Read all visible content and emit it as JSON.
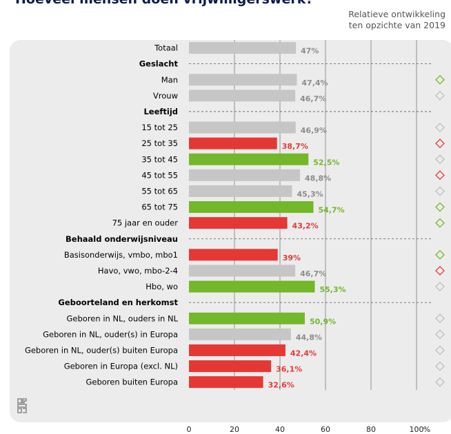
{
  "header": {
    "title": "Hoeveel mensen doen vrijwilligerswerk?",
    "subtitle": "Relatieve ontwikkeling\nten opzichte van 2019"
  },
  "colors": {
    "neutral": "#c6c6c6",
    "lower": "#e53834",
    "higher": "#74b72a",
    "neutral_text": "#8c8c8c",
    "panel": "#ececec"
  },
  "chart_data": {
    "type": "bar",
    "orientation": "horizontal",
    "title": "Hoeveel mensen doen vrijwilligerswerk?",
    "xlabel": "%",
    "xlim": [
      0,
      100
    ],
    "xticks": [
      0,
      20,
      40,
      60,
      80,
      100
    ],
    "rows": [
      {
        "label": "Totaal",
        "value": 47,
        "value_label": "47%",
        "status": "neutral",
        "trend": "none"
      },
      {
        "label": "Geslacht",
        "header": true
      },
      {
        "label": "Man",
        "value": 47.4,
        "value_label": "47,4%",
        "status": "neutral",
        "trend": "higher"
      },
      {
        "label": "Vrouw",
        "value": 46.7,
        "value_label": "46,7%",
        "status": "neutral",
        "trend": "equal"
      },
      {
        "label": "Leeftijd",
        "header": true
      },
      {
        "label": "15 tot 25",
        "value": 46.9,
        "value_label": "46,9%",
        "status": "neutral",
        "trend": "equal"
      },
      {
        "label": "25 tot 35",
        "value": 38.7,
        "value_label": "38,7%",
        "status": "lower",
        "trend": "lower"
      },
      {
        "label": "35 tot 45",
        "value": 52.5,
        "value_label": "52,5%",
        "status": "higher",
        "trend": "equal"
      },
      {
        "label": "45 tot 55",
        "value": 48.8,
        "value_label": "48,8%",
        "status": "neutral",
        "trend": "lower"
      },
      {
        "label": "55 tot 65",
        "value": 45.3,
        "value_label": "45,3%",
        "status": "neutral",
        "trend": "equal"
      },
      {
        "label": "65 tot 75",
        "value": 54.7,
        "value_label": "54,7%",
        "status": "higher",
        "trend": "higher"
      },
      {
        "label": "75 jaar en ouder",
        "value": 43.2,
        "value_label": "43,2%",
        "status": "lower",
        "trend": "higher"
      },
      {
        "label": "Behaald onderwijsniveau",
        "header": true
      },
      {
        "label": "Basisonderwijs, vmbo, mbo1",
        "value": 39,
        "value_label": "39%",
        "status": "lower",
        "trend": "higher"
      },
      {
        "label": "Havo, vwo, mbo-2-4",
        "value": 46.7,
        "value_label": "46,7%",
        "status": "neutral",
        "trend": "lower"
      },
      {
        "label": "Hbo, wo",
        "value": 55.3,
        "value_label": "55,3%",
        "status": "higher",
        "trend": "equal"
      },
      {
        "label": "Geboorteland en herkomst",
        "header": true
      },
      {
        "label": "Geboren in NL, ouders in NL",
        "value": 50.9,
        "value_label": "50,9%",
        "status": "higher",
        "trend": "equal"
      },
      {
        "label": "Geboren in NL, ouder(s) in Europa",
        "value": 44.8,
        "value_label": "44,8%",
        "status": "neutral",
        "trend": "equal"
      },
      {
        "label": "Geboren in NL, ouder(s) buiten Europa",
        "value": 42.4,
        "value_label": "42,4%",
        "status": "lower",
        "trend": "equal"
      },
      {
        "label": "Geboren in Europa (excl. NL)",
        "value": 36.1,
        "value_label": "36,1%",
        "status": "lower",
        "trend": "equal"
      },
      {
        "label": "Geboren buiten Europa",
        "value": 32.6,
        "value_label": "32,6%",
        "status": "lower",
        "trend": "equal"
      }
    ]
  }
}
